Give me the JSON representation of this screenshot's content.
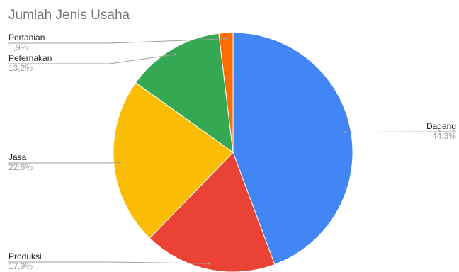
{
  "chart_data": {
    "type": "pie",
    "title": "Jumlah Jenis Usaha",
    "legend": "none",
    "slices": [
      {
        "name": "Dagang",
        "value": 44.3,
        "label": "44,3%",
        "color": "#4285f4"
      },
      {
        "name": "Produksi",
        "value": 17.9,
        "label": "17,9%",
        "color": "#ea4335"
      },
      {
        "name": "Jasa",
        "value": 22.6,
        "label": "22,6%",
        "color": "#fbbc04"
      },
      {
        "name": "Peternakan",
        "value": 13.2,
        "label": "13,2%",
        "color": "#34a853"
      },
      {
        "name": "Pertanian",
        "value": 1.9,
        "label": "1,9%",
        "color": "#ff6d01"
      }
    ]
  }
}
